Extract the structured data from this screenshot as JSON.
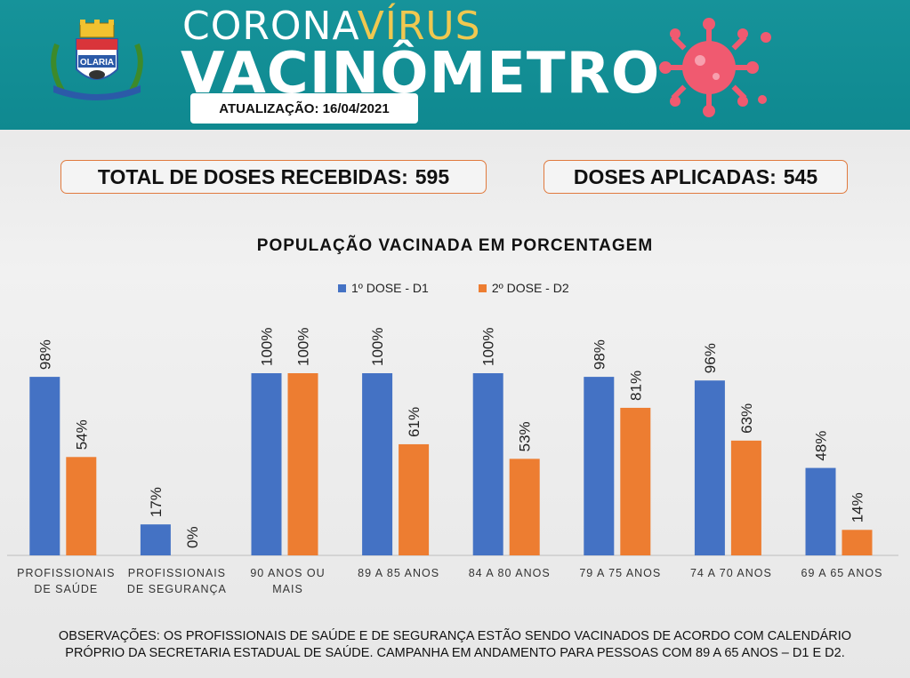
{
  "header": {
    "title_prefix": "CORONA",
    "title_highlight": "VÍRUS",
    "title_main": "VACINÔMETRO",
    "update_label": "ATUALIZAÇÃO:",
    "update_date": "16/04/2021",
    "crest_label": "OLARIA",
    "crest_icon": "municipal-coat-of-arms",
    "virus_icon": "coronavirus-icon"
  },
  "stats": {
    "received_label": "TOTAL DE DOSES RECEBIDAS:",
    "received_value": "595",
    "applied_label": "DOSES APLICADAS:",
    "applied_value": "545"
  },
  "colors": {
    "header_bg": "#16939a",
    "d1": "#4472c4",
    "d2": "#ed7d31",
    "accent": "#f0c850",
    "virus": "#f05a70"
  },
  "chart_data": {
    "type": "bar",
    "title": "POPULAÇÃO VACINADA EM PORCENTAGEM",
    "categories": [
      [
        "PROFISSIONAIS",
        "DE SAÚDE"
      ],
      [
        "PROFISSIONAIS",
        "DE SEGURANÇA"
      ],
      [
        "90 ANOS OU",
        "MAIS"
      ],
      [
        "89 A 85 ANOS"
      ],
      [
        "84 A 80 ANOS"
      ],
      [
        "79 A 75 ANOS"
      ],
      [
        "74 A 70 ANOS"
      ],
      [
        "69 A 65 ANOS"
      ]
    ],
    "series": [
      {
        "name": "1º DOSE - D1",
        "values": [
          98,
          17,
          100,
          100,
          100,
          98,
          96,
          48
        ]
      },
      {
        "name": "2º DOSE - D2",
        "values": [
          54,
          0,
          100,
          61,
          53,
          81,
          63,
          14
        ]
      }
    ],
    "value_suffix": "%",
    "ylim": [
      0,
      100
    ],
    "grid": false,
    "legend_position": "top-center"
  },
  "notes": {
    "line1": "OBSERVAÇÕES: OS PROFISSIONAIS DE SAÚDE E DE SEGURANÇA ESTÃO SENDO VACINADOS DE ACORDO COM CALENDÁRIO",
    "line2": "PRÓPRIO DA SECRETARIA ESTADUAL DE SAÚDE. CAMPANHA EM ANDAMENTO PARA PESSOAS COM 89 A 65 ANOS – D1 E D2."
  }
}
